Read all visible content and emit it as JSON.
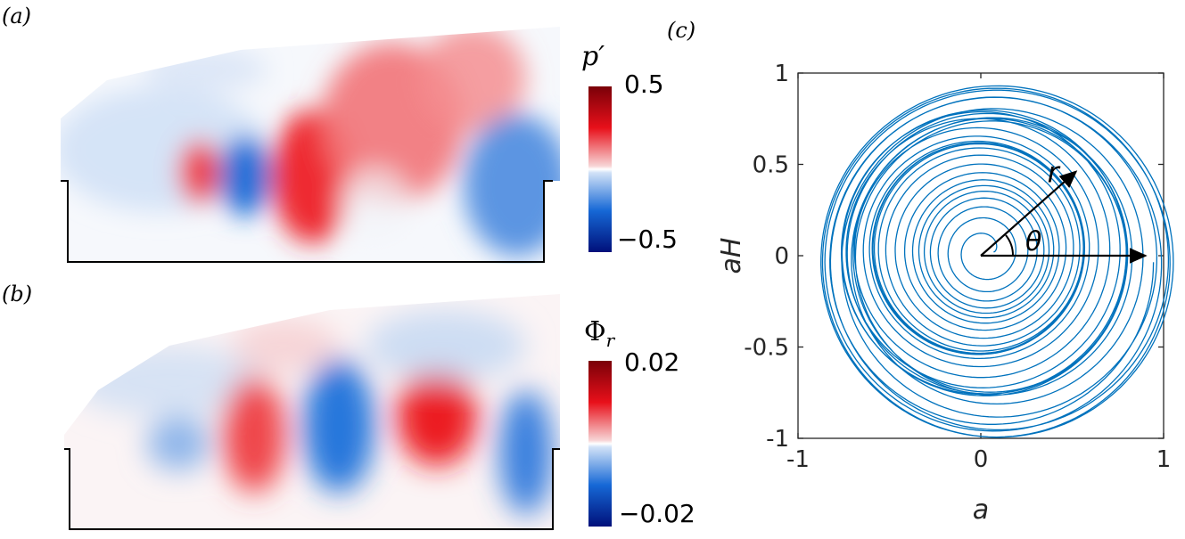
{
  "panels": {
    "a": {
      "label": "(a)",
      "colorbar": {
        "title": "p′",
        "max_label": "0.5",
        "min_label": "−0.5",
        "range": [
          -0.5,
          0.5
        ]
      }
    },
    "b": {
      "label": "(b)",
      "colorbar": {
        "title": "Φr",
        "max_label": "0.02",
        "min_label": "−0.02",
        "range": [
          -0.02,
          0.02
        ]
      }
    },
    "c": {
      "label": "(c)"
    }
  },
  "colors": {
    "positive": "#e8101a",
    "negative": "#1668d6",
    "dark_positive": "#7a0008",
    "dark_negative": "#00107a",
    "trajectory": "#0072bd"
  },
  "chart_data": {
    "type": "line",
    "xlabel": "a",
    "ylabel": "a^H",
    "xlim": [
      -1,
      1
    ],
    "ylim": [
      -1,
      1
    ],
    "xticks": [
      -1,
      0,
      1
    ],
    "yticks": [
      -1,
      -0.5,
      0,
      0.5,
      1
    ],
    "xtick_labels": [
      "-1",
      "0",
      "1"
    ],
    "ytick_labels": [
      "-1",
      "-0.5",
      "0",
      "0.5",
      "1"
    ],
    "grid": false,
    "annotations": {
      "r_label": "r",
      "theta_label": "θ",
      "r_arrow_end": [
        0.52,
        0.46
      ],
      "theta_arrow_end": [
        0.9,
        0
      ]
    },
    "trajectory": {
      "description_free_params": true,
      "center_drift": [
        0.08,
        0.02
      ],
      "r_start": 0.05,
      "r_end": 0.95,
      "turns": 30
    }
  }
}
